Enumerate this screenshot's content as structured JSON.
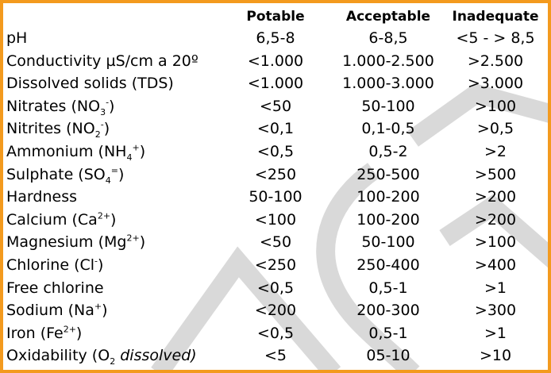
{
  "headers": {
    "potable": "Potable",
    "acceptable": "Acceptable",
    "inadequate": "Inadequate"
  },
  "rows": [
    {
      "param": "pH",
      "potable": "6,5-8",
      "acceptable": "6-8,5",
      "inadequate": "<5 - > 8,5"
    },
    {
      "param": "Conductivity",
      "unit": "µS/cm a 20º",
      "potable": "<1.000",
      "acceptable": "1.000-2.500",
      "inadequate": ">2.500"
    },
    {
      "param": "Dissolved solids  (TDS)",
      "potable": "<1.000",
      "acceptable": "1.000-3.000",
      "inadequate": ">3.000"
    },
    {
      "param": "Nitrates (NO",
      "sub": "3",
      "sup": "-",
      "close": ")",
      "potable": "<50",
      "acceptable": "50-100",
      "inadequate": ">100"
    },
    {
      "param": "Nitrites (NO",
      "sub": "2",
      "sup": "-",
      "close": ")",
      "potable": "<0,1",
      "acceptable": "0,1-0,5",
      "inadequate": ">0,5"
    },
    {
      "param": "Ammonium (NH",
      "sub": "4",
      "sup": "+",
      "close": ")",
      "potable": "<0,5",
      "acceptable": "0,5-2",
      "inadequate": ">2"
    },
    {
      "param": "Sulphate (SO",
      "sub": "4",
      "sup": "=",
      "close": ")",
      "potable": "<250",
      "acceptable": "250-500",
      "inadequate": ">500"
    },
    {
      "param": "Hardness",
      "potable": "50-100",
      "acceptable": "100-200",
      "inadequate": ">200"
    },
    {
      "param": "Calcium (Ca",
      "sup": "2+",
      "close": ")",
      "potable": "<100",
      "acceptable": "100-200",
      "inadequate": ">200"
    },
    {
      "param": "Magnesium (Mg",
      "sup": "2+",
      "close": ")",
      "potable": "<50",
      "acceptable": "50-100",
      "inadequate": ">100"
    },
    {
      "param": "Chlorine (Cl",
      "sup": "-",
      "close": ")",
      "potable": "<250",
      "acceptable": "250-400",
      "inadequate": ">400"
    },
    {
      "param": "Free chlorine",
      "potable": "<0,5",
      "acceptable": "0,5-1",
      "inadequate": ">1"
    },
    {
      "param": "Sodium (Na",
      "sup": "+",
      "close": ")",
      "potable": "<200",
      "acceptable": "200-300",
      "inadequate": ">300"
    },
    {
      "param": "Iron (Fe",
      "sup": "2+",
      "close": ")",
      "potable": "<0,5",
      "acceptable": "0,5-1",
      "inadequate": ">1"
    },
    {
      "param": "Oxidability  (O",
      "sub": "2",
      "paramTail": " dissolved)",
      "potable": "<5",
      "acceptable": "05-10",
      "inadequate": ">10"
    }
  ],
  "colors": {
    "border": "#f39a1e",
    "watermark": "#d9d9d9"
  }
}
